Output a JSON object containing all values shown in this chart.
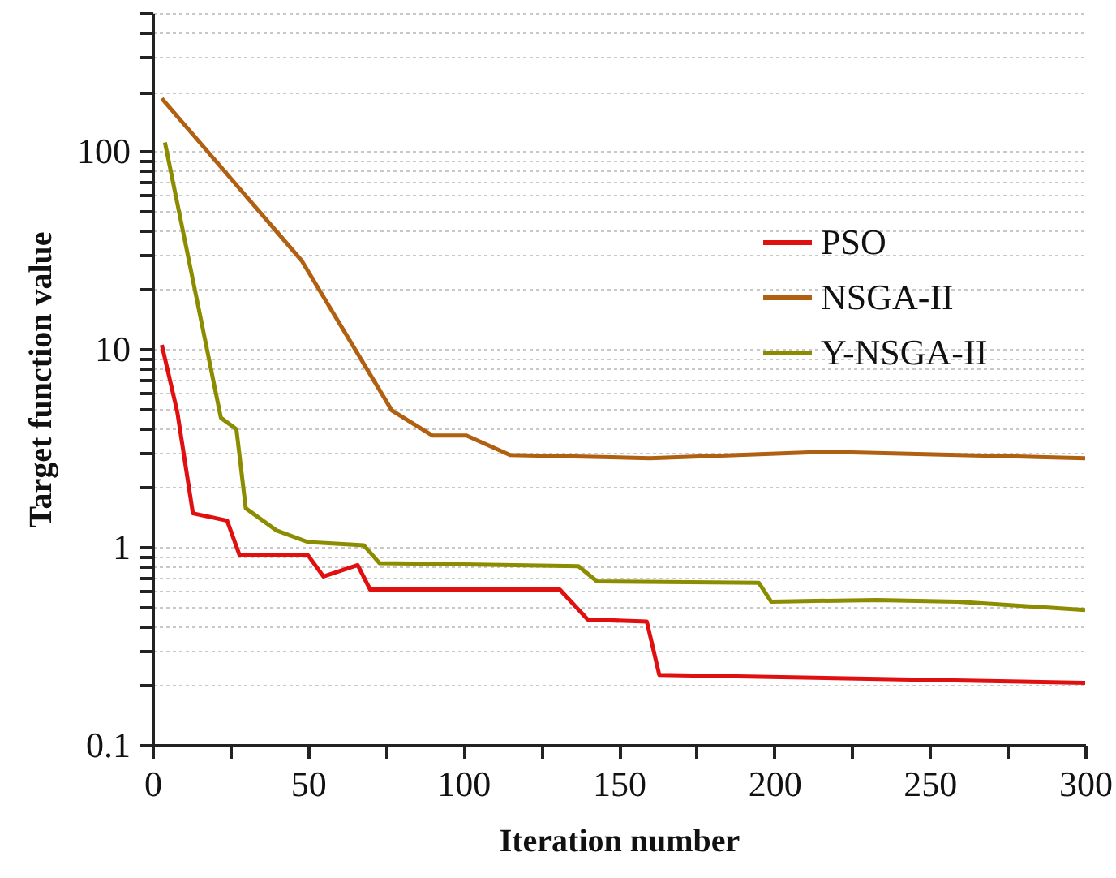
{
  "chart_data": {
    "type": "line",
    "xlabel": "Iteration number",
    "ylabel": "Target function value",
    "log": "y",
    "grid": "y",
    "legend": "right",
    "line_style": "solid",
    "marker": "none",
    "xlim": [
      0,
      300
    ],
    "xticks": [
      0,
      {
        "value": 25,
        "label": null
      },
      50,
      {
        "value": 75,
        "label": null
      },
      100,
      {
        "value": 125,
        "label": null
      },
      150,
      {
        "value": 175,
        "label": null
      },
      200,
      {
        "value": 225,
        "label": null
      },
      250,
      {
        "value": 275,
        "label": null
      },
      300
    ],
    "ylim": [
      0.1,
      500
    ],
    "yticks": [
      0.1,
      {
        "value": 0.2,
        "label": null
      },
      {
        "value": 0.3,
        "label": null
      },
      {
        "value": 0.4,
        "label": null
      },
      {
        "value": 0.5,
        "label": null
      },
      {
        "value": 0.6,
        "label": null
      },
      {
        "value": 0.7,
        "label": null
      },
      {
        "value": 0.8,
        "label": null
      },
      {
        "value": 0.9,
        "label": null
      },
      1,
      {
        "value": 2,
        "label": null
      },
      {
        "value": 3,
        "label": null
      },
      {
        "value": 4,
        "label": null
      },
      {
        "value": 5,
        "label": null
      },
      {
        "value": 6,
        "label": null
      },
      {
        "value": 7,
        "label": null
      },
      {
        "value": 8,
        "label": null
      },
      {
        "value": 9,
        "label": null
      },
      10,
      {
        "value": 20,
        "label": null
      },
      {
        "value": 30,
        "label": null
      },
      {
        "value": 40,
        "label": null
      },
      {
        "value": 50,
        "label": null
      },
      {
        "value": 60,
        "label": null
      },
      {
        "value": 70,
        "label": null
      },
      {
        "value": 80,
        "label": null
      },
      {
        "value": 90,
        "label": null
      },
      100,
      {
        "value": 200,
        "label": null
      },
      {
        "value": 300,
        "label": null
      },
      {
        "value": 400,
        "label": null
      },
      {
        "value": 500,
        "label": null
      }
    ],
    "series": [
      {
        "name": "PSO",
        "color": "#e01010",
        "x": [
          3,
          8,
          13,
          24,
          28,
          50,
          55,
          66,
          70,
          131,
          140,
          159,
          163,
          300
        ],
        "values": [
          10.5,
          4.8,
          1.48,
          1.36,
          0.91,
          0.91,
          0.71,
          0.81,
          0.61,
          0.61,
          0.43,
          0.42,
          0.226,
          0.206
        ]
      },
      {
        "name": "NSGA-II",
        "color": "#b06010",
        "x": [
          3,
          48,
          77,
          90,
          101,
          115,
          160,
          217,
          300
        ],
        "values": [
          185,
          28,
          4.9,
          3.66,
          3.66,
          2.92,
          2.81,
          3.03,
          2.81
        ]
      },
      {
        "name": "Y-NSGA-II",
        "color": "#8c8c00",
        "x": [
          4,
          22,
          27,
          30,
          40,
          50,
          68,
          73,
          137,
          143,
          195,
          199,
          233,
          259,
          300
        ],
        "values": [
          111,
          4.5,
          3.94,
          1.57,
          1.21,
          1.06,
          1.02,
          0.83,
          0.8,
          0.67,
          0.66,
          0.53,
          0.54,
          0.53,
          0.48
        ]
      }
    ]
  }
}
